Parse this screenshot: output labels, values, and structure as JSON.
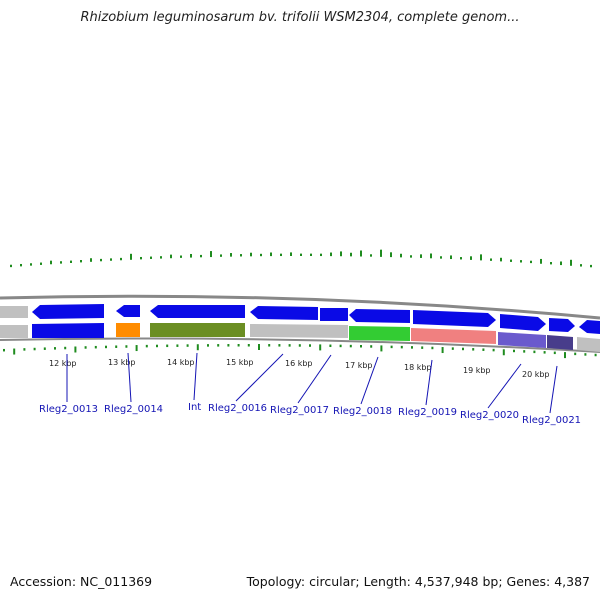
{
  "title": "Rhizobium leguminosarum bv. trifolii WSM2304, complete genom...",
  "footer": {
    "accession": "Accession: NC_011369",
    "summary": "Topology: circular; Length: 4,537,948 bp; Genes: 4,387"
  },
  "colors": {
    "cds": "#0a0ae6",
    "rna_orange": "#ff8c00",
    "olive": "#6b8e23",
    "green": "#33cc33",
    "salmon": "#f08080",
    "slate": "#6a5acd",
    "dark_slate": "#483d8b",
    "track_gray": "#c0c0c0",
    "gc_ticks": "#1f8c1f",
    "label": "#1414b4"
  },
  "scale": {
    "unit": "kbp",
    "ticks": [
      {
        "value": 12,
        "label": "12 kbp"
      },
      {
        "value": 13,
        "label": "13 kbp"
      },
      {
        "value": 14,
        "label": "14 kbp"
      },
      {
        "value": 15,
        "label": "15 kbp"
      },
      {
        "value": 16,
        "label": "16 kbp"
      },
      {
        "value": 17,
        "label": "17 kbp"
      },
      {
        "value": 18,
        "label": "18 kbp"
      },
      {
        "value": 19,
        "label": "19 kbp"
      },
      {
        "value": 20,
        "label": "20 kbp"
      }
    ]
  },
  "genes": [
    {
      "label": "Rleg2_0013"
    },
    {
      "label": "Rleg2_0014"
    },
    {
      "label": "Int"
    },
    {
      "label": "Rleg2_0016"
    },
    {
      "label": "Rleg2_0017"
    },
    {
      "label": "Rleg2_0018"
    },
    {
      "label": "Rleg2_0019"
    },
    {
      "label": "Rleg2_0020"
    },
    {
      "label": "Rleg2_0021"
    }
  ]
}
